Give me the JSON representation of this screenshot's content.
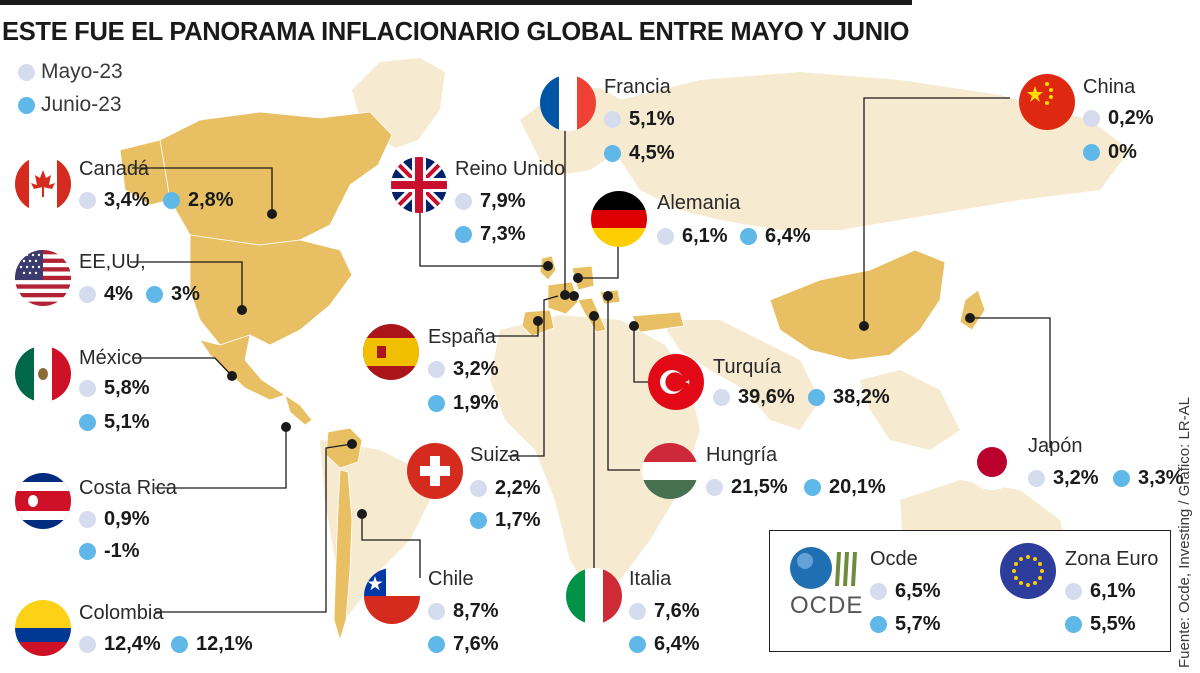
{
  "title": "ESTE FUE EL PANORAMA INFLACIONARIO GLOBAL ENTRE MAYO Y JUNIO",
  "legend": {
    "may": "Mayo-23",
    "jun": "Junio-23"
  },
  "colors": {
    "map": "#e8c063",
    "map_faint": "#f6ead0",
    "may": "#d5dcee",
    "jun": "#5fb8e8"
  },
  "source": "Fuente: Ocde, Investing / Gráfico: LR-AL",
  "ocde_logo": "OCDE",
  "chart_data": {
    "type": "table",
    "columns": [
      "Mayo-23",
      "Junio-23"
    ],
    "rows": [
      {
        "name": "Canadá",
        "may": "3,4%",
        "jun": "2,8%"
      },
      {
        "name": "EE,UU,",
        "may": "4%",
        "jun": "3%"
      },
      {
        "name": "México",
        "may": "5,8%",
        "jun": "5,1%"
      },
      {
        "name": "Costa Rica",
        "may": "0,9%",
        "jun": "-1%"
      },
      {
        "name": "Colombia",
        "may": "12,4%",
        "jun": "12,1%"
      },
      {
        "name": "Reino Unido",
        "may": "7,9%",
        "jun": "7,3%"
      },
      {
        "name": "Francia",
        "may": "5,1%",
        "jun": "4,5%"
      },
      {
        "name": "Alemania",
        "may": "6,1%",
        "jun": "6,4%"
      },
      {
        "name": "España",
        "may": "3,2%",
        "jun": "1,9%"
      },
      {
        "name": "Suiza",
        "may": "2,2%",
        "jun": "1,7%"
      },
      {
        "name": "Chile",
        "may": "8,7%",
        "jun": "7,6%"
      },
      {
        "name": "Italia",
        "may": "7,6%",
        "jun": "6,4%"
      },
      {
        "name": "Hungría",
        "may": "21,5%",
        "jun": "20,1%"
      },
      {
        "name": "Turquía",
        "may": "39,6%",
        "jun": "38,2%"
      },
      {
        "name": "China",
        "may": "0,2%",
        "jun": "0%"
      },
      {
        "name": "Japón",
        "may": "3,2%",
        "jun": "3,3%"
      },
      {
        "name": "Ocde",
        "may": "6,5%",
        "jun": "5,7%"
      },
      {
        "name": "Zona Euro",
        "may": "6,1%",
        "jun": "5,5%"
      }
    ]
  }
}
